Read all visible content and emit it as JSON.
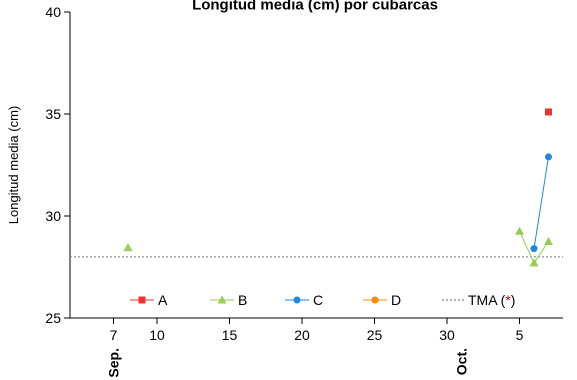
{
  "chart_data": {
    "type": "line",
    "title": "Longitud media (cm) por cubarcas",
    "ylabel": "Longitud media (cm)",
    "xlabel": "",
    "ylim": [
      25,
      40
    ],
    "yticks": [
      25,
      30,
      35,
      40
    ],
    "xlim": [
      "2023-09-04",
      "2023-10-08"
    ],
    "xticks": [
      {
        "date": "2023-09-07",
        "label": "7"
      },
      {
        "date": "2023-09-10",
        "label": "10"
      },
      {
        "date": "2023-09-15",
        "label": "15"
      },
      {
        "date": "2023-09-20",
        "label": "20"
      },
      {
        "date": "2023-09-25",
        "label": "25"
      },
      {
        "date": "2023-09-30",
        "label": "30"
      },
      {
        "date": "2023-10-05",
        "label": "5"
      }
    ],
    "month_labels": [
      {
        "date": "2023-09-07",
        "label": "Sep."
      },
      {
        "date": "2023-10-01",
        "label": "Oct."
      }
    ],
    "grid": false,
    "legend_position": "bottom",
    "series": [
      {
        "name": "A",
        "color": "#ee3333",
        "marker": "square",
        "points": [
          {
            "x": "2023-10-07",
            "y": 35.1
          }
        ]
      },
      {
        "name": "B",
        "color": "#99cc55",
        "marker": "triangle",
        "points": [
          {
            "x": "2023-09-08",
            "y": 28.45
          },
          {
            "x": "2023-10-05",
            "y": 29.25
          },
          {
            "x": "2023-10-06",
            "y": 27.7
          },
          {
            "x": "2023-10-07",
            "y": 28.75
          }
        ]
      },
      {
        "name": "C",
        "color": "#2288dd",
        "marker": "circle",
        "points": [
          {
            "x": "2023-10-06",
            "y": 28.4
          },
          {
            "x": "2023-10-07",
            "y": 32.9
          }
        ]
      },
      {
        "name": "D",
        "color": "#ff8800",
        "marker": "circle",
        "points": []
      }
    ],
    "reference_line": {
      "name": "TMA (*)",
      "y": 28.0,
      "color": "#888888"
    },
    "legend_reference_label": "TMA (",
    "legend_reference_star": "*",
    "legend_reference_close": ")"
  }
}
